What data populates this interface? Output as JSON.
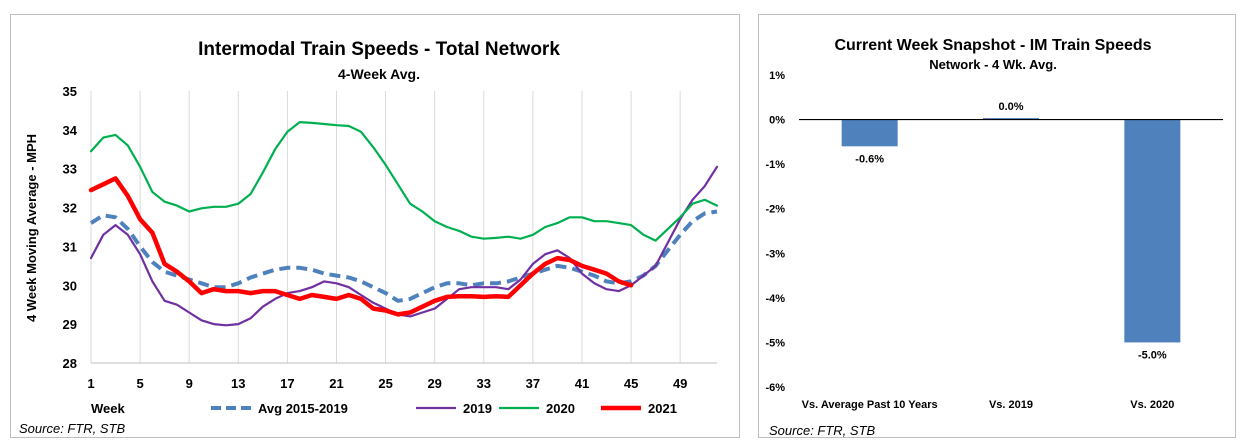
{
  "chart_data": [
    {
      "type": "line",
      "title": "Intermodal Train Speeds - Total Network",
      "subtitle": "4-Week Avg.",
      "xlabel": "Week",
      "ylabel": "4 Week Moving Average - MPH",
      "ylim": [
        28,
        35
      ],
      "y_ticks": [
        28,
        29,
        30,
        31,
        32,
        33,
        34,
        35
      ],
      "x_ticks": [
        1,
        5,
        9,
        13,
        17,
        21,
        25,
        29,
        33,
        37,
        41,
        45,
        49
      ],
      "grid": "vertical",
      "legend": "bottom",
      "source": "Source: FTR, STB",
      "series": [
        {
          "name": "Avg 2015-2019",
          "color": "#4f81bd",
          "style": "dashed",
          "x": [
            1,
            2,
            3,
            4,
            5,
            6,
            7,
            8,
            9,
            10,
            11,
            12,
            13,
            14,
            15,
            16,
            17,
            18,
            19,
            20,
            21,
            22,
            23,
            24,
            25,
            26,
            27,
            28,
            29,
            30,
            31,
            32,
            33,
            34,
            35,
            36,
            37,
            38,
            39,
            40,
            41,
            42,
            43,
            44,
            45,
            46,
            47,
            48,
            49,
            50,
            51,
            52
          ],
          "values": [
            31.6,
            31.8,
            31.75,
            31.45,
            31.0,
            30.6,
            30.35,
            30.25,
            30.15,
            30.05,
            29.95,
            29.95,
            30.05,
            30.2,
            30.3,
            30.4,
            30.45,
            30.45,
            30.4,
            30.3,
            30.25,
            30.2,
            30.1,
            29.95,
            29.8,
            29.6,
            29.65,
            29.8,
            29.95,
            30.05,
            30.05,
            30.0,
            30.05,
            30.05,
            30.1,
            30.2,
            30.3,
            30.4,
            30.5,
            30.45,
            30.35,
            30.25,
            30.1,
            30.05,
            30.1,
            30.25,
            30.5,
            30.9,
            31.3,
            31.65,
            31.85,
            31.9
          ]
        },
        {
          "name": "2019",
          "color": "#7030a0",
          "style": "solid",
          "x": [
            1,
            2,
            3,
            4,
            5,
            6,
            7,
            8,
            9,
            10,
            11,
            12,
            13,
            14,
            15,
            16,
            17,
            18,
            19,
            20,
            21,
            22,
            23,
            24,
            25,
            26,
            27,
            28,
            29,
            30,
            31,
            32,
            33,
            34,
            35,
            36,
            37,
            38,
            39,
            40,
            41,
            42,
            43,
            44,
            45,
            46,
            47,
            48,
            49,
            50,
            51,
            52
          ],
          "values": [
            30.7,
            31.3,
            31.55,
            31.3,
            30.8,
            30.1,
            29.6,
            29.5,
            29.3,
            29.1,
            29.0,
            28.97,
            29.0,
            29.15,
            29.45,
            29.65,
            29.8,
            29.85,
            29.95,
            30.1,
            30.05,
            29.95,
            29.75,
            29.55,
            29.4,
            29.25,
            29.2,
            29.3,
            29.4,
            29.65,
            29.9,
            29.95,
            29.95,
            29.95,
            29.9,
            30.15,
            30.55,
            30.8,
            30.9,
            30.7,
            30.3,
            30.05,
            29.9,
            29.85,
            30.0,
            30.25,
            30.5,
            31.1,
            31.7,
            32.2,
            32.55,
            33.05
          ]
        },
        {
          "name": "2020",
          "color": "#00b050",
          "style": "solid",
          "x": [
            1,
            2,
            3,
            4,
            5,
            6,
            7,
            8,
            9,
            10,
            11,
            12,
            13,
            14,
            15,
            16,
            17,
            18,
            19,
            20,
            21,
            22,
            23,
            24,
            25,
            26,
            27,
            28,
            29,
            30,
            31,
            32,
            33,
            34,
            35,
            36,
            37,
            38,
            39,
            40,
            41,
            42,
            43,
            44,
            45,
            46,
            47,
            48,
            49,
            50,
            51,
            52
          ],
          "values": [
            33.45,
            33.8,
            33.87,
            33.6,
            33.05,
            32.4,
            32.15,
            32.05,
            31.9,
            31.98,
            32.02,
            32.02,
            32.1,
            32.35,
            32.9,
            33.5,
            33.95,
            34.2,
            34.18,
            34.15,
            34.12,
            34.1,
            33.95,
            33.55,
            33.1,
            32.6,
            32.1,
            31.9,
            31.65,
            31.5,
            31.4,
            31.25,
            31.2,
            31.22,
            31.25,
            31.2,
            31.3,
            31.5,
            31.6,
            31.75,
            31.75,
            31.65,
            31.65,
            31.6,
            31.55,
            31.3,
            31.15,
            31.45,
            31.75,
            32.1,
            32.2,
            32.05
          ]
        },
        {
          "name": "2021",
          "color": "#ff0000",
          "style": "solid",
          "x": [
            1,
            2,
            3,
            4,
            5,
            6,
            7,
            8,
            9,
            10,
            11,
            12,
            13,
            14,
            15,
            16,
            17,
            18,
            19,
            20,
            21,
            22,
            23,
            24,
            25,
            26,
            27,
            28,
            29,
            30,
            31,
            32,
            33,
            34,
            35,
            36,
            37,
            38,
            39,
            40,
            41,
            42,
            43,
            44,
            45
          ],
          "values": [
            32.45,
            32.6,
            32.75,
            32.3,
            31.7,
            31.35,
            30.55,
            30.35,
            30.1,
            29.8,
            29.9,
            29.85,
            29.85,
            29.8,
            29.85,
            29.85,
            29.75,
            29.65,
            29.75,
            29.7,
            29.65,
            29.75,
            29.65,
            29.4,
            29.35,
            29.25,
            29.3,
            29.45,
            29.6,
            29.7,
            29.72,
            29.72,
            29.7,
            29.72,
            29.7,
            30.0,
            30.3,
            30.55,
            30.7,
            30.65,
            30.5,
            30.4,
            30.3,
            30.1,
            30.0
          ]
        }
      ]
    },
    {
      "type": "bar",
      "title": "Current Week Snapshot - IM Train Speeds",
      "subtitle": "Network - 4 Wk. Avg.",
      "categories": [
        "Vs. Average Past 10 Years",
        "Vs. 2019",
        "Vs. 2020"
      ],
      "values": [
        -0.6,
        0.0,
        -5.0
      ],
      "data_labels": [
        "-0.6%",
        "0.0%",
        "-5.0%"
      ],
      "ylim": [
        -6,
        1
      ],
      "y_ticks": [
        1,
        0,
        -1,
        -2,
        -3,
        -4,
        -5,
        -6
      ],
      "y_tick_labels": [
        "1%",
        "0%",
        "-1%",
        "-2%",
        "-3%",
        "-4%",
        "-5%",
        "-6%"
      ],
      "bar_color": "#4f81bd",
      "source": "Source: FTR, STB"
    }
  ]
}
